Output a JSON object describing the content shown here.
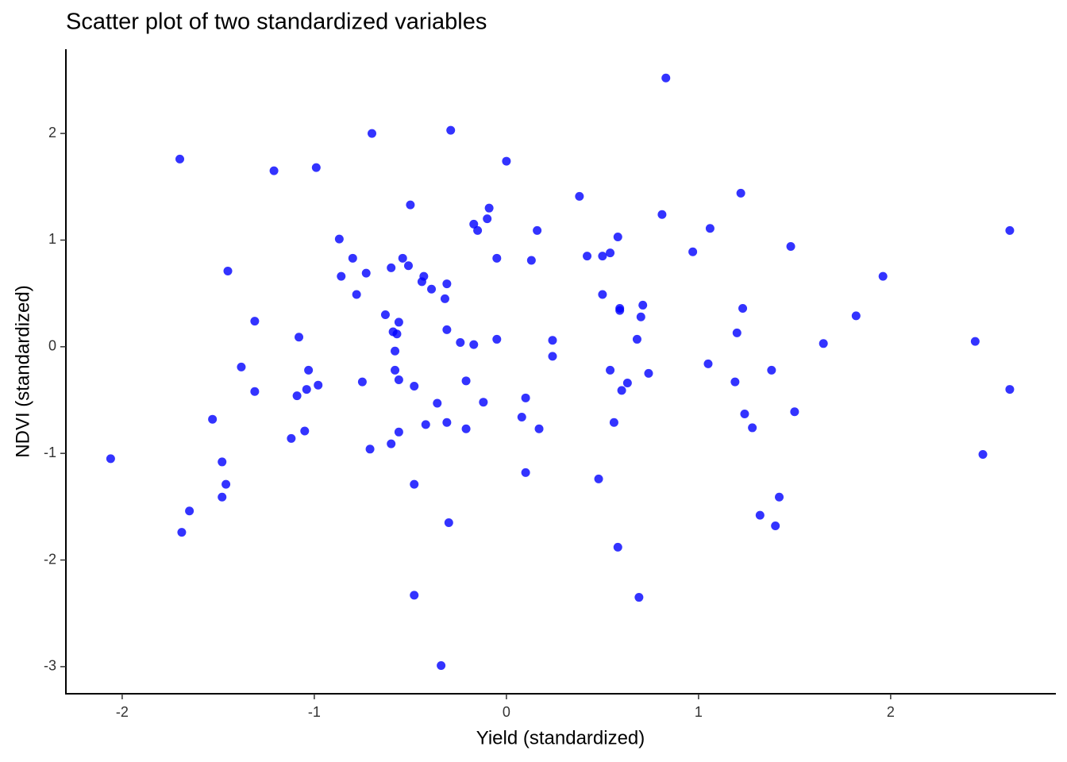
{
  "chart_data": {
    "type": "scatter",
    "title": "Scatter plot of two standardized variables",
    "x_label": "Yield (standardized)",
    "y_label": "NDVI (standardized)",
    "color": "#0000ff",
    "xlim": [
      -2.293,
      2.86
    ],
    "ylim": [
      -3.254,
      2.79
    ],
    "xticks": [
      -2,
      -1,
      0,
      1,
      2
    ],
    "yticks": [
      -3,
      -2,
      -1,
      0,
      1,
      2
    ],
    "x": [
      0.83,
      -0.7,
      -0.29,
      -1.7,
      -1.21,
      -0.99,
      0.0,
      0.38,
      1.22,
      -0.5,
      -0.09,
      -0.17,
      -0.1,
      -0.15,
      0.81,
      0.16,
      1.06,
      2.62,
      -0.87,
      0.58,
      1.48,
      0.97,
      0.54,
      0.42,
      0.5,
      -0.8,
      -0.54,
      -0.05,
      0.13,
      -0.51,
      -1.45,
      -0.6,
      -0.73,
      -0.86,
      -0.43,
      1.96,
      -0.44,
      -0.31,
      -0.39,
      -0.78,
      0.5,
      -0.32,
      0.71,
      1.23,
      0.59,
      0.59,
      -0.63,
      0.7,
      1.82,
      -1.31,
      -0.56,
      -0.59,
      -0.31,
      -0.57,
      1.2,
      -1.08,
      -0.05,
      0.68,
      0.24,
      2.44,
      -0.24,
      -0.17,
      1.65,
      -0.58,
      0.24,
      -1.38,
      1.05,
      -1.03,
      -0.58,
      0.54,
      1.38,
      0.74,
      -0.56,
      -0.75,
      -0.21,
      1.19,
      -0.98,
      0.63,
      -0.48,
      -1.04,
      0.6,
      2.62,
      -1.31,
      -1.09,
      0.1,
      -0.36,
      -0.12,
      1.5,
      1.24,
      0.08,
      -1.53,
      0.56,
      -0.31,
      -0.42,
      1.28,
      0.17,
      -0.21,
      -1.05,
      -0.56,
      -1.12,
      -0.6,
      -0.71,
      2.48,
      -2.06,
      -1.48,
      0.1,
      0.48,
      -1.46,
      -0.48,
      -1.48,
      1.42,
      -1.65,
      1.32,
      -0.3,
      -1.69,
      1.4,
      0.58,
      -0.48,
      0.69,
      -0.34
    ],
    "values": [
      2.52,
      2.0,
      2.03,
      1.76,
      1.65,
      1.68,
      1.74,
      1.41,
      1.44,
      1.33,
      1.3,
      1.15,
      1.2,
      1.09,
      1.24,
      1.09,
      1.11,
      1.09,
      1.01,
      1.03,
      0.94,
      0.89,
      0.88,
      0.85,
      0.85,
      0.83,
      0.83,
      0.83,
      0.81,
      0.76,
      0.71,
      0.74,
      0.69,
      0.66,
      0.66,
      0.66,
      0.61,
      0.59,
      0.54,
      0.49,
      0.49,
      0.45,
      0.39,
      0.36,
      0.36,
      0.34,
      0.3,
      0.28,
      0.29,
      0.24,
      0.23,
      0.14,
      0.16,
      0.12,
      0.13,
      0.09,
      0.07,
      0.07,
      0.06,
      0.05,
      0.04,
      0.02,
      0.03,
      -0.04,
      -0.09,
      -0.19,
      -0.16,
      -0.22,
      -0.22,
      -0.22,
      -0.22,
      -0.25,
      -0.31,
      -0.33,
      -0.32,
      -0.33,
      -0.36,
      -0.34,
      -0.37,
      -0.4,
      -0.41,
      -0.4,
      -0.42,
      -0.46,
      -0.48,
      -0.53,
      -0.52,
      -0.61,
      -0.63,
      -0.66,
      -0.68,
      -0.71,
      -0.71,
      -0.73,
      -0.76,
      -0.77,
      -0.77,
      -0.79,
      -0.8,
      -0.86,
      -0.91,
      -0.96,
      -1.01,
      -1.05,
      -1.08,
      -1.18,
      -1.24,
      -1.29,
      -1.29,
      -1.41,
      -1.41,
      -1.54,
      -1.58,
      -1.65,
      -1.74,
      -1.68,
      -1.88,
      -2.33,
      -2.35,
      -2.99
    ]
  }
}
